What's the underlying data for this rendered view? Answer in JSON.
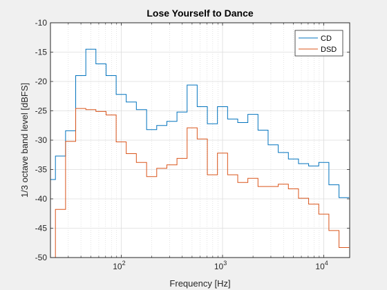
{
  "chart_data": {
    "type": "line",
    "title": "Lose Yourself to Dance",
    "xlabel": "Frequency [Hz]",
    "ylabel": "1/3 octave band level [dBFS]",
    "x_scale": "log",
    "xlim": [
      20,
      18000
    ],
    "ylim": [
      -50,
      -10
    ],
    "y_ticks": [
      -50,
      -45,
      -40,
      -35,
      -30,
      -25,
      -20,
      -15,
      -10
    ],
    "x_ticks": [
      {
        "value": 100,
        "mantissa": "10",
        "exponent": "2"
      },
      {
        "value": 1000,
        "mantissa": "10",
        "exponent": "3"
      },
      {
        "value": 10000,
        "mantissa": "10",
        "exponent": "4"
      }
    ],
    "grid": true,
    "minor_grid": true,
    "legend_position": "top-right",
    "step_style": "stairs",
    "band_edges": [
      17.8,
      22.4,
      28.2,
      35.5,
      44.7,
      56.2,
      70.8,
      89.1,
      112,
      141,
      178,
      224,
      282,
      355,
      447,
      562,
      708,
      891,
      1122,
      1413,
      1778,
      2239,
      2818,
      3548,
      4467,
      5623,
      7079,
      8913,
      11220,
      14125,
      17783
    ],
    "series": [
      {
        "name": "CD",
        "color": "#0072bd",
        "values": [
          -36.7,
          -32.7,
          -28.4,
          -19.0,
          -14.5,
          -17.0,
          -19.0,
          -22.2,
          -23.5,
          -24.8,
          -28.2,
          -27.5,
          -26.8,
          -25.2,
          -20.6,
          -24.3,
          -27.2,
          -24.3,
          -26.4,
          -27.0,
          -25.6,
          -28.3,
          -30.8,
          -32.1,
          -33.2,
          -34.0,
          -34.4,
          -33.8,
          -37.6,
          -39.8
        ]
      },
      {
        "name": "DSD",
        "color": "#d95319",
        "values": [
          -50.0,
          -41.8,
          -30.2,
          -24.6,
          -24.8,
          -25.1,
          -25.7,
          -30.3,
          -32.3,
          -33.8,
          -36.2,
          -34.8,
          -34.2,
          -33.1,
          -27.9,
          -29.8,
          -35.9,
          -32.2,
          -35.9,
          -37.2,
          -36.5,
          -37.9,
          -37.9,
          -37.5,
          -38.3,
          -39.9,
          -40.9,
          -42.6,
          -45.4,
          -48.3
        ]
      }
    ]
  }
}
